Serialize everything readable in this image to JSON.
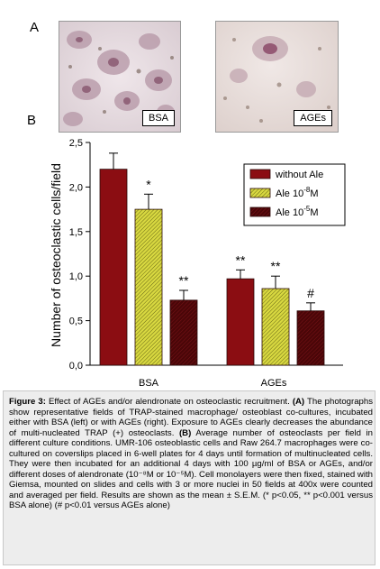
{
  "panel_a": {
    "letter": "A",
    "photos": [
      {
        "label": "BSA"
      },
      {
        "label": "AGEs"
      }
    ]
  },
  "panel_b": {
    "letter": "B"
  },
  "chart_data": {
    "type": "bar",
    "ylabel": "Number of osteoclastic cells/field",
    "xlabel": "",
    "ylim": [
      0,
      2.5
    ],
    "yticks": [
      "0,0",
      "0,5",
      "1,0",
      "1,5",
      "2,0",
      "2,5"
    ],
    "ytick_values": [
      0,
      0.5,
      1.0,
      1.5,
      2.0,
      2.5
    ],
    "categories": [
      "BSA",
      "AGEs"
    ],
    "legend_position": "top-right",
    "grid": false,
    "series": [
      {
        "legend_main": "without Ale",
        "legend_exp": "",
        "legend_tail": "",
        "color": "#8b0d12",
        "pattern": "solid",
        "values": [
          2.2,
          0.97
        ],
        "errors": [
          0.18,
          0.1
        ],
        "annotations": [
          "",
          "**"
        ]
      },
      {
        "legend_main": "Ale 10",
        "legend_exp": "-8",
        "legend_tail": "M",
        "color": "#c8c832",
        "pattern": "hatch",
        "values": [
          1.75,
          0.86
        ],
        "errors": [
          0.17,
          0.14
        ],
        "annotations": [
          "*",
          "**"
        ]
      },
      {
        "legend_main": "Ale 10",
        "legend_exp": "-5",
        "legend_tail": "M",
        "color": "#5c0a0c",
        "pattern": "dark-hatch",
        "values": [
          0.73,
          0.61
        ],
        "errors": [
          0.11,
          0.09
        ],
        "annotations": [
          "**",
          "#"
        ]
      }
    ]
  },
  "caption": {
    "title": "Figure 3:",
    "intro": " Effect of AGEs and/or alendronate on osteoclastic recruitment. ",
    "a_label": "(A)",
    "a_text": " The photographs show representative fields of TRAP-stained macrophage/ osteoblast co-cultures, incubated either with BSA (left) or with AGEs (right). Exposure to AGEs clearly decreases the abundance of multi-nucleated TRAP (+) osteoclasts. ",
    "b_label": "(B)",
    "b_text": " Average number of osteoclasts per field in different culture conditions. UMR-106 osteoblastic cells and Raw 264.7 macrophages were co-cultured on coverslips placed in 6-well plates for 4 days until formation of multinucleated cells. They were then incubated for an additional 4 days with 100 µg/ml of BSA or AGEs, and/or different doses of alendronate (10⁻⁸M or 10⁻⁵M). Cell monolayers were then fixed, stained with Giemsa, mounted on slides and cells with 3 or more nuclei in 50 fields at 400x were counted and averaged per field. Results are shown as the mean ± S.E.M. (* p<0.05, ** p<0.001 versus BSA alone) (# p<0.01 versus AGEs alone)"
  },
  "colors": {
    "caption_bg": "#ededed",
    "without_ale": "#8b0d12",
    "ale_low": "#c8c832",
    "ale_high": "#5c0a0c"
  }
}
